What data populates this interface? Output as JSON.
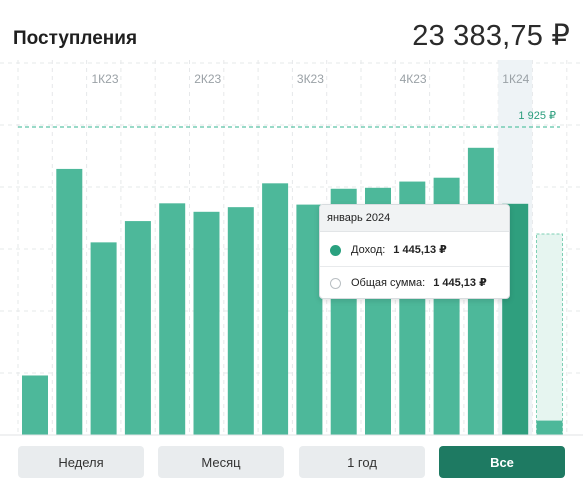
{
  "header": {
    "title": "Поступления",
    "total": "23 383,75 ₽"
  },
  "chart_data": {
    "type": "bar",
    "quarter_labels": [
      "1К23",
      "2К23",
      "3К23",
      "4К23",
      "1К24"
    ],
    "reference_line": {
      "value": 1925,
      "label": "1 925 ₽"
    },
    "ylim": [
      0,
      2000
    ],
    "values": [
      372,
      1663,
      1204,
      1337,
      1448,
      1395,
      1424,
      1573,
      1440,
      1539,
      1545,
      1584,
      1608,
      1795,
      1445,
      90
    ],
    "highlighted_index": 14,
    "forecast": {
      "index": 15,
      "total": 1256
    },
    "colors": {
      "bar": "#4db89a",
      "bar_highlight": "#2f9f7e",
      "reference": "#5cc4a6"
    }
  },
  "tooltip": {
    "date": "январь 2024",
    "rows": [
      {
        "label": "Доход:",
        "value": "1 445,13 ₽"
      },
      {
        "label": "Общая сумма:",
        "value": "1 445,13 ₽"
      }
    ]
  },
  "periods": {
    "week": "Неделя",
    "month": "Месяц",
    "year": "1 год",
    "all": "Все"
  }
}
